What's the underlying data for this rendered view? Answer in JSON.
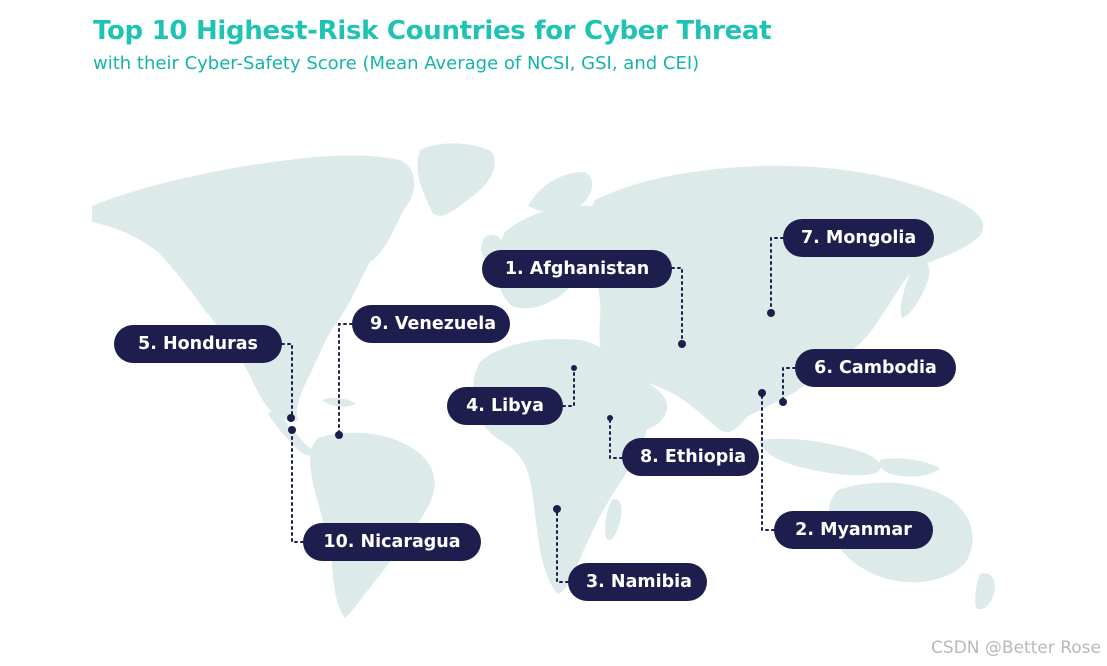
{
  "title": "Top 10 Highest-Risk Countries for Cyber Threat",
  "subtitle": "with their Cyber-Safety Score (Mean Average of NCSI, GSI, and CEI)",
  "colors": {
    "title": "#1fc3b4",
    "land": "#dcebe9",
    "pill": "#1e1e4e",
    "dot": "#1e1e4e"
  },
  "labels": [
    {
      "id": "afghanistan",
      "text": "1. Afghanistan"
    },
    {
      "id": "myanmar",
      "text": "2. Myanmar"
    },
    {
      "id": "namibia",
      "text": "3. Namibia"
    },
    {
      "id": "libya",
      "text": "4. Libya"
    },
    {
      "id": "honduras",
      "text": "5. Honduras"
    },
    {
      "id": "cambodia",
      "text": "6. Cambodia"
    },
    {
      "id": "mongolia",
      "text": "7. Mongolia"
    },
    {
      "id": "ethiopia",
      "text": "8. Ethiopia"
    },
    {
      "id": "venezuela",
      "text": "9. Venezuela"
    },
    {
      "id": "nicaragua",
      "text": "10. Nicaragua"
    }
  ],
  "watermark": "CSDN @Better Rose"
}
